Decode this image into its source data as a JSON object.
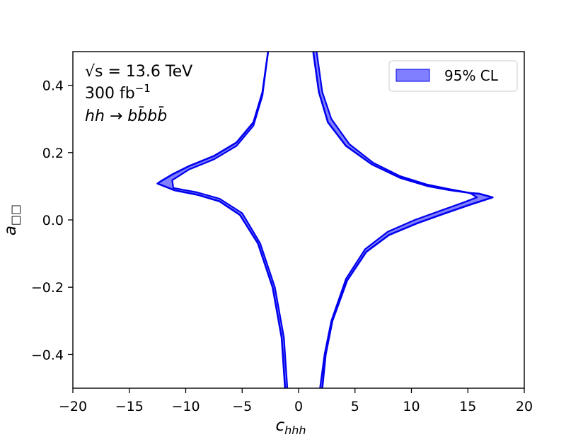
{
  "chart_data": {
    "type": "area",
    "title": "",
    "xlabel": "c_hhh",
    "ylabel": "a_□□",
    "xlim": [
      -20,
      20
    ],
    "ylim": [
      -0.5,
      0.5
    ],
    "xticks": [
      -20,
      -15,
      -10,
      -5,
      0,
      5,
      10,
      15,
      20
    ],
    "xtick_labels": [
      "−20",
      "−15",
      "−10",
      "−5",
      "0",
      "5",
      "10",
      "15",
      "20"
    ],
    "yticks": [
      -0.4,
      -0.2,
      0.0,
      0.2,
      0.4
    ],
    "ytick_labels": [
      "−0.4",
      "−0.2",
      "0.0",
      "0.2",
      "0.4"
    ],
    "grid": false,
    "legend_position": "top-right",
    "annotations": {
      "line1_sqrt": "√s",
      "line1_rest": " = 13.6 TeV",
      "line2": "300 fb",
      "line2_sup": "−1",
      "line3": "hh → bb̄bb̄"
    },
    "series": [
      {
        "name": "95% CL",
        "color": "#0000ee",
        "fill": "#7f7fff",
        "outer_upper_left": [
          [
            -2.7,
            0.5
          ],
          [
            -3.2,
            0.38
          ],
          [
            -4.0,
            0.29
          ],
          [
            -5.5,
            0.23
          ],
          [
            -7.5,
            0.19
          ],
          [
            -9.7,
            0.16
          ],
          [
            -11.2,
            0.135
          ],
          [
            -12.2,
            0.115
          ],
          [
            -12.5,
            0.108
          ]
        ],
        "outer_lower_left": [
          [
            -12.5,
            0.108
          ],
          [
            -11.0,
            0.088
          ],
          [
            -9.0,
            0.075
          ],
          [
            -7.0,
            0.055
          ],
          [
            -5.2,
            0.015
          ],
          [
            -3.6,
            -0.07
          ],
          [
            -2.3,
            -0.2
          ],
          [
            -1.5,
            -0.35
          ],
          [
            -1.2,
            -0.5
          ]
        ],
        "inner_upper_left": [
          [
            -11.2,
            0.118
          ],
          [
            -9.7,
            0.15
          ],
          [
            -7.5,
            0.18
          ],
          [
            -5.5,
            0.22
          ],
          [
            -4.0,
            0.28
          ],
          [
            -3.2,
            0.37
          ],
          [
            -2.7,
            0.5
          ]
        ],
        "inner_lower_left": [
          [
            -11.2,
            0.118
          ],
          [
            -11.1,
            0.095
          ],
          [
            -9.0,
            0.082
          ],
          [
            -7.0,
            0.063
          ],
          [
            -5.0,
            0.02
          ],
          [
            -3.4,
            -0.07
          ],
          [
            -2.1,
            -0.2
          ],
          [
            -1.3,
            -0.35
          ],
          [
            -1.0,
            -0.5
          ]
        ],
        "outer_upper_right": [
          [
            1.3,
            0.5
          ],
          [
            1.8,
            0.38
          ],
          [
            2.6,
            0.29
          ],
          [
            4.2,
            0.22
          ],
          [
            6.5,
            0.165
          ],
          [
            9.0,
            0.125
          ],
          [
            11.5,
            0.1
          ],
          [
            13.5,
            0.088
          ],
          [
            15.2,
            0.08
          ],
          [
            16.0,
            0.078
          ],
          [
            17.2,
            0.067
          ]
        ],
        "outer_lower_right": [
          [
            17.2,
            0.067
          ],
          [
            15.0,
            0.043
          ],
          [
            13.0,
            0.02
          ],
          [
            10.5,
            -0.01
          ],
          [
            8.0,
            -0.045
          ],
          [
            6.0,
            -0.095
          ],
          [
            4.3,
            -0.18
          ],
          [
            3.0,
            -0.3
          ],
          [
            2.4,
            -0.4
          ],
          [
            2.1,
            -0.5
          ]
        ],
        "inner_upper_right": [
          [
            1.6,
            0.5
          ],
          [
            2.1,
            0.38
          ],
          [
            2.9,
            0.3
          ],
          [
            4.5,
            0.225
          ],
          [
            6.6,
            0.17
          ],
          [
            9.0,
            0.13
          ],
          [
            11.4,
            0.105
          ],
          [
            13.3,
            0.092
          ],
          [
            14.9,
            0.082
          ],
          [
            15.3,
            0.078
          ],
          [
            15.8,
            0.067
          ]
        ],
        "inner_lower_right": [
          [
            15.8,
            0.067
          ],
          [
            14.7,
            0.053
          ],
          [
            12.8,
            0.03
          ],
          [
            10.3,
            0.0
          ],
          [
            7.9,
            -0.035
          ],
          [
            5.9,
            -0.087
          ],
          [
            4.2,
            -0.175
          ],
          [
            2.9,
            -0.3
          ],
          [
            2.3,
            -0.4
          ],
          [
            1.9,
            -0.5
          ]
        ]
      }
    ]
  }
}
